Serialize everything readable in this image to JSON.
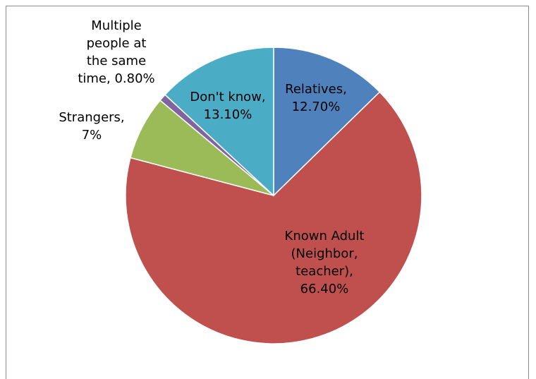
{
  "chart_data": {
    "type": "pie",
    "title": "",
    "slices": [
      {
        "name": "Relatives",
        "value": 12.7,
        "label_lines": [
          "Relatives,",
          "12.70%"
        ],
        "color": "#4F81BD"
      },
      {
        "name": "Known Adult (Neighbor, teacher)",
        "value": 66.4,
        "label_lines": [
          "Known Adult",
          "(Neighbor,",
          "teacher),",
          "66.40%"
        ],
        "color": "#C0504D"
      },
      {
        "name": "Strangers",
        "value": 7.0,
        "label_lines": [
          "Strangers,",
          "7%"
        ],
        "color": "#9BBB59"
      },
      {
        "name": "Multiple people at the same time",
        "value": 0.8,
        "label_lines": [
          "Multiple",
          "people at",
          "the same",
          "time, 0.80%"
        ],
        "color": "#8064A2"
      },
      {
        "name": "Don't know",
        "value": 13.1,
        "label_lines": [
          "Don't know,",
          "13.10%"
        ],
        "color": "#4BACC6"
      }
    ],
    "legend": "none"
  }
}
